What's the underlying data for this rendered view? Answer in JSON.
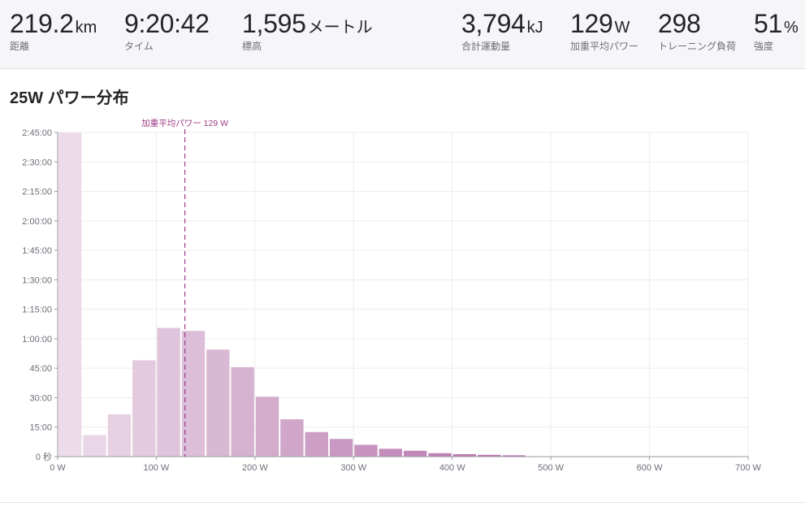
{
  "stats": [
    {
      "value": "219.2",
      "unit": "km",
      "label": "距離"
    },
    {
      "value": "9:20:42",
      "unit": "",
      "label": "タイム"
    },
    {
      "value": "1,595",
      "unit": "メートル",
      "label": "標高"
    },
    {
      "value": "3,794",
      "unit": "kJ",
      "label": "合計運動量"
    },
    {
      "value": "129",
      "unit": "W",
      "label": "加重平均パワー"
    },
    {
      "value": "298",
      "unit": "",
      "label": "トレーニング負荷"
    },
    {
      "value": "51",
      "unit": "%",
      "label": "強度"
    }
  ],
  "section": {
    "title": "25W パワー分布"
  },
  "chart_data": {
    "type": "bar",
    "title": "25W パワー分布",
    "xlabel": "",
    "ylabel": "",
    "bin_width_w": 25,
    "xlim": [
      0,
      700
    ],
    "ylim_seconds": [
      0,
      9900
    ],
    "x_ticks": [
      "0 W",
      "100 W",
      "200 W",
      "300 W",
      "400 W",
      "500 W",
      "600 W",
      "700 W"
    ],
    "x_tick_values": [
      0,
      100,
      200,
      300,
      400,
      500,
      600,
      700
    ],
    "y_ticks": [
      "0 秒",
      "15:00",
      "30:00",
      "45:00",
      "1:00:00",
      "1:15:00",
      "1:30:00",
      "1:45:00",
      "2:00:00",
      "2:15:00",
      "2:30:00",
      "2:45:00"
    ],
    "y_tick_values": [
      0,
      900,
      1800,
      2700,
      3600,
      4500,
      5400,
      6300,
      7200,
      8100,
      9000,
      9900
    ],
    "bins_start_w": [
      0,
      25,
      50,
      75,
      100,
      125,
      150,
      175,
      200,
      225,
      250,
      275,
      300,
      325,
      350,
      375,
      400,
      425,
      450,
      475,
      500,
      525,
      550,
      575,
      600,
      625,
      650,
      675
    ],
    "values_seconds": [
      9900,
      660,
      1290,
      2940,
      3930,
      3840,
      3270,
      2730,
      1830,
      1140,
      750,
      540,
      360,
      240,
      180,
      105,
      75,
      55,
      40,
      0,
      0,
      0,
      0,
      0,
      0,
      0,
      0,
      0
    ],
    "reference_line": {
      "value": 129,
      "label": "加重平均パワー 129 W"
    },
    "colors": {
      "bar_light": "#ecdce9",
      "bar_dark": "#ad62a3",
      "reference": "#9c3c86",
      "grid": "#ececee",
      "axis": "#9a9aa2",
      "tick_text": "#6d6d78"
    },
    "grid": true
  }
}
